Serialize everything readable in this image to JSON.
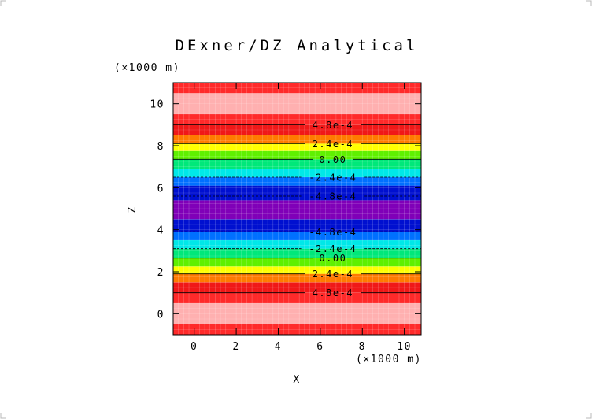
{
  "chart_data": {
    "type": "heatmap",
    "title": "DExner/DZ Analytical",
    "xlabel": "X",
    "ylabel": "Z",
    "x_unit": "(×1000 m)",
    "y_unit": "(×1000 m)",
    "xlim": [
      -1.0,
      10.8
    ],
    "ylim": [
      -1.0,
      11.0
    ],
    "x_ticks": [
      0,
      2,
      4,
      6,
      8,
      10
    ],
    "y_ticks": [
      0,
      2,
      4,
      6,
      8,
      10
    ],
    "x_tick_labels": [
      "0",
      "2",
      "4",
      "6",
      "8",
      "10"
    ],
    "y_tick_labels": [
      "0",
      "2",
      "4",
      "6",
      "8",
      "10"
    ],
    "grid": true,
    "field_varies_with": "Z",
    "bands": [
      {
        "z0": -1.0,
        "z1": -0.5,
        "color": "#ff2a2a"
      },
      {
        "z0": -0.5,
        "z1": 0.5,
        "color": "#ffb0b0"
      },
      {
        "z0": 0.5,
        "z1": 1.0,
        "color": "#ff2a2a"
      },
      {
        "z0": 1.0,
        "z1": 1.5,
        "color": "#f01818"
      },
      {
        "z0": 1.5,
        "z1": 1.9,
        "color": "#ff7a00"
      },
      {
        "z0": 1.9,
        "z1": 2.25,
        "color": "#ffff00"
      },
      {
        "z0": 2.25,
        "z1": 2.65,
        "color": "#5ff000"
      },
      {
        "z0": 2.65,
        "z1": 3.1,
        "color": "#00e87a"
      },
      {
        "z0": 3.1,
        "z1": 3.5,
        "color": "#00e8e8"
      },
      {
        "z0": 3.5,
        "z1": 3.9,
        "color": "#0070ff"
      },
      {
        "z0": 3.9,
        "z1": 4.5,
        "color": "#0010d0"
      },
      {
        "z0": 4.5,
        "z1": 5.4,
        "color": "#8000b8"
      },
      {
        "z0": 5.4,
        "z1": 6.1,
        "color": "#0010d0"
      },
      {
        "z0": 6.1,
        "z1": 6.5,
        "color": "#0070ff"
      },
      {
        "z0": 6.5,
        "z1": 6.9,
        "color": "#00e8e8"
      },
      {
        "z0": 6.9,
        "z1": 7.35,
        "color": "#00e87a"
      },
      {
        "z0": 7.35,
        "z1": 7.75,
        "color": "#5ff000"
      },
      {
        "z0": 7.75,
        "z1": 8.1,
        "color": "#ffff00"
      },
      {
        "z0": 8.1,
        "z1": 8.5,
        "color": "#ff7a00"
      },
      {
        "z0": 8.5,
        "z1": 9.0,
        "color": "#f01818"
      },
      {
        "z0": 9.0,
        "z1": 9.5,
        "color": "#ff2a2a"
      },
      {
        "z0": 9.5,
        "z1": 10.5,
        "color": "#ffb0b0"
      },
      {
        "z0": 10.5,
        "z1": 11.0,
        "color": "#ff2a2a"
      }
    ],
    "contours": [
      {
        "z": 9.0,
        "label": "4.8e-4",
        "dashed": false
      },
      {
        "z": 8.1,
        "label": "2.4e-4",
        "dashed": false
      },
      {
        "z": 7.35,
        "label": "0.00",
        "dashed": false
      },
      {
        "z": 6.5,
        "label": "-2.4e-4",
        "dashed": true
      },
      {
        "z": 5.6,
        "label": "-4.8e-4",
        "dashed": true
      },
      {
        "z": 3.9,
        "label": "-4.8e-4",
        "dashed": true
      },
      {
        "z": 3.1,
        "label": "-2.4e-4",
        "dashed": true
      },
      {
        "z": 2.65,
        "label": "0.00",
        "dashed": false
      },
      {
        "z": 1.9,
        "label": "2.4e-4",
        "dashed": false
      },
      {
        "z": 1.0,
        "label": "4.8e-4",
        "dashed": false
      }
    ],
    "contour_label_x": 6.6
  }
}
